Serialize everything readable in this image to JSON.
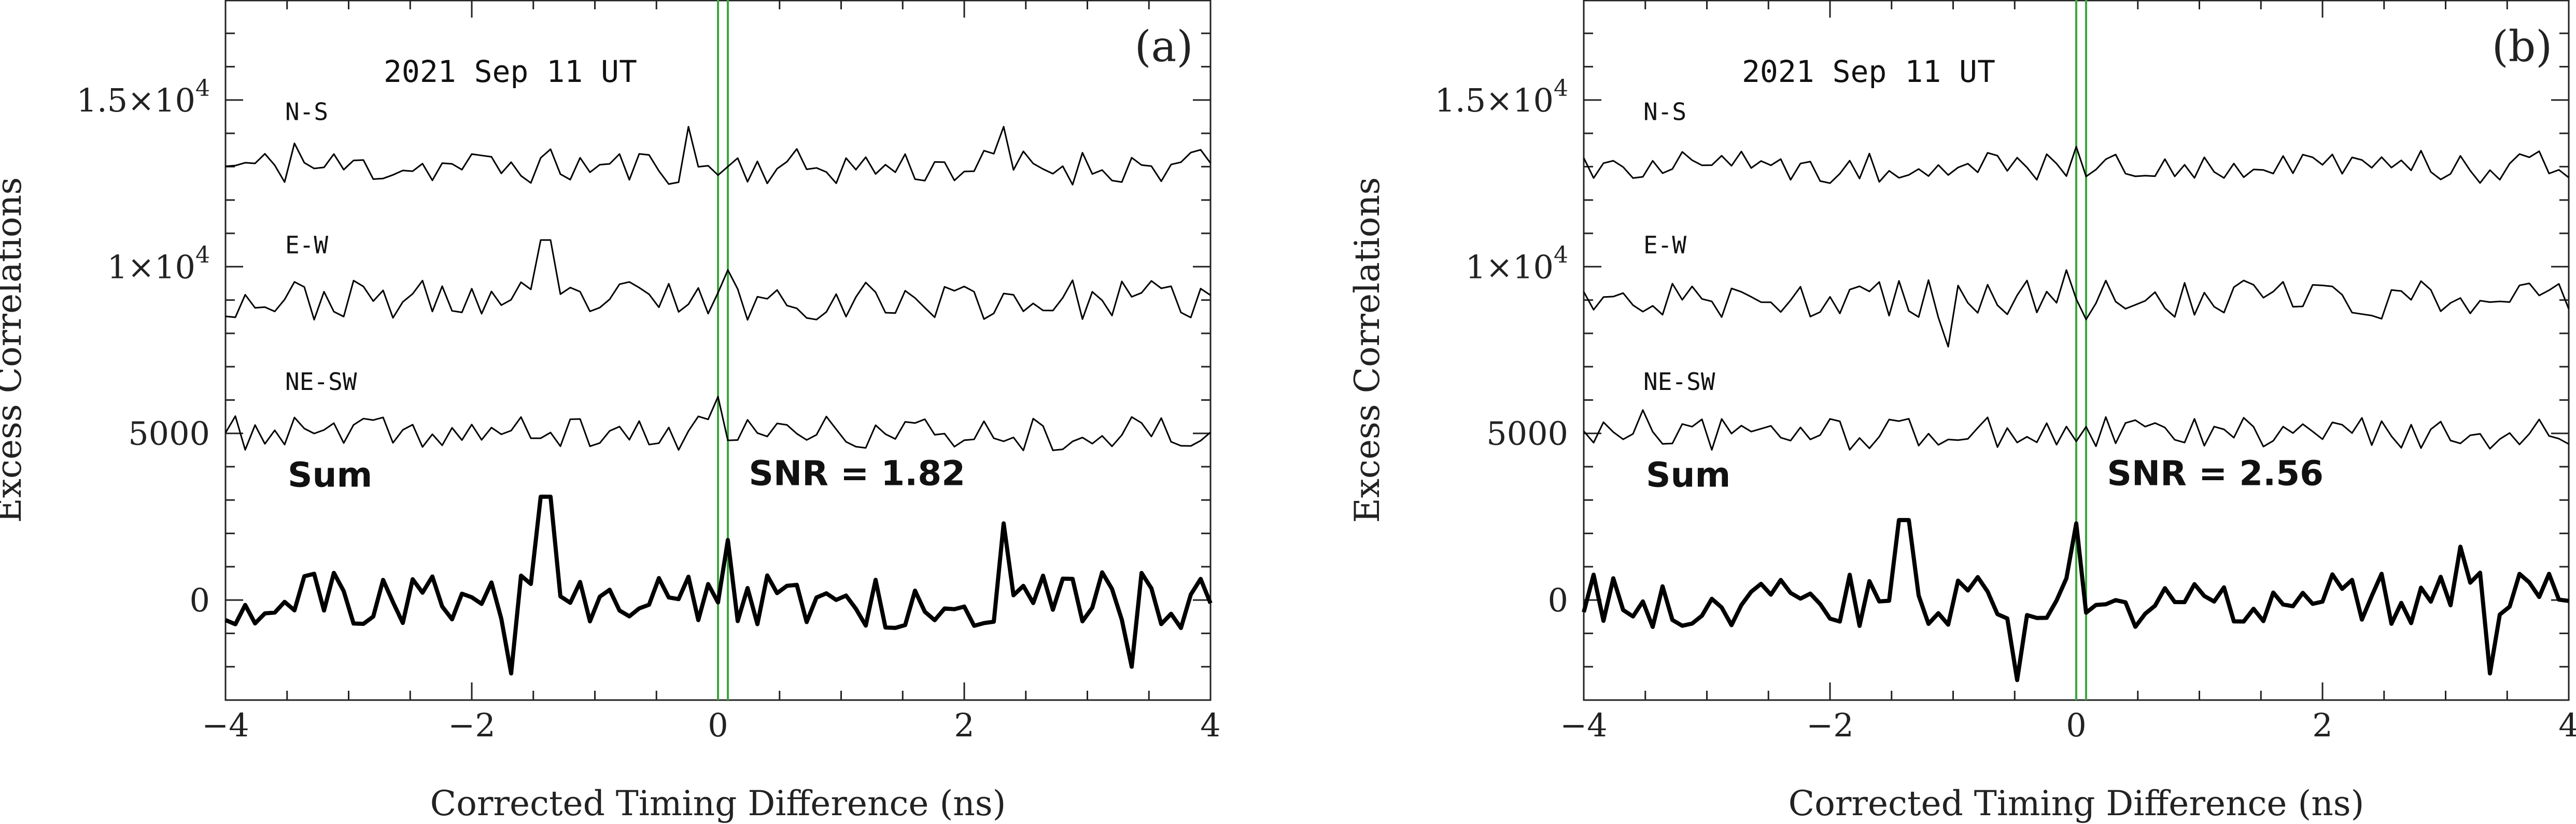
{
  "figure": {
    "xlabel": "Corrected Timing Difference (ns)",
    "ylabel": "Excess Correlations",
    "date": "2021 Sep 11 UT",
    "sum_label": "Sum"
  },
  "colors": {
    "marker": "#3aa83a",
    "line": "#000000",
    "frame": "#222222"
  },
  "chart_data": [
    {
      "type": "line",
      "panel_label": "(a)",
      "title": "2021 Sep 11 UT",
      "xlabel": "Corrected Timing Difference (ns)",
      "ylabel": "Excess Correlations",
      "xlim": [
        -4,
        4
      ],
      "ylim": [
        -3000,
        18000
      ],
      "x_ticks": [
        -4,
        -2,
        0,
        2,
        4
      ],
      "x_tick_labels": [
        "−4",
        "−2",
        "0",
        "2",
        "4"
      ],
      "y_ticks": [
        0,
        5000,
        10000,
        15000
      ],
      "y_tick_labels": [
        {
          "main": "0",
          "exp": ""
        },
        {
          "main": "5000",
          "exp": ""
        },
        {
          "main": "1×10",
          "exp": "4"
        },
        {
          "main": "1.5×10",
          "exp": "4"
        }
      ],
      "snr_text": "SNR = 1.82",
      "marker_lines_x": [
        0.0,
        0.08
      ],
      "series": [
        {
          "name": "N-S",
          "offset": 13000,
          "amplitude": 550,
          "seed": 11,
          "peaks": [
            [
              -0.25,
              1200
            ],
            [
              2.35,
              1200
            ],
            [
              -3.45,
              700
            ]
          ]
        },
        {
          "name": "E-W",
          "offset": 9000,
          "amplitude": 600,
          "seed": 23,
          "peaks": [
            [
              -1.4,
              1800
            ],
            [
              0.05,
              900
            ]
          ]
        },
        {
          "name": "NE-SW",
          "offset": 5000,
          "amplitude": 520,
          "seed": 37,
          "peaks": [
            [
              0.0,
              1100
            ]
          ]
        },
        {
          "name": "Sum",
          "offset": 0,
          "amplitude": 850,
          "seed": 51,
          "bold": true,
          "peaks": [
            [
              -1.4,
              3100
            ],
            [
              -1.7,
              -2200
            ],
            [
              3.35,
              -2000
            ],
            [
              0.05,
              1800
            ],
            [
              2.3,
              2300
            ]
          ]
        }
      ]
    },
    {
      "type": "line",
      "panel_label": "(b)",
      "title": "2021 Sep 11 UT",
      "xlabel": "Corrected Timing Difference (ns)",
      "ylabel": "Excess Correlations",
      "xlim": [
        -4,
        4
      ],
      "ylim": [
        -3000,
        18000
      ],
      "x_ticks": [
        -4,
        -2,
        0,
        2,
        4
      ],
      "x_tick_labels": [
        "−4",
        "−2",
        "0",
        "2",
        "4"
      ],
      "y_ticks": [
        0,
        5000,
        10000,
        15000
      ],
      "y_tick_labels": [
        {
          "main": "0",
          "exp": ""
        },
        {
          "main": "5000",
          "exp": ""
        },
        {
          "main": "1×10",
          "exp": "4"
        },
        {
          "main": "1.5×10",
          "exp": "4"
        }
      ],
      "snr_text": "SNR = 2.56",
      "marker_lines_x": [
        0.0,
        0.08
      ],
      "series": [
        {
          "name": "N-S",
          "offset": 13000,
          "amplitude": 500,
          "seed": 71,
          "peaks": [
            [
              0.0,
              600
            ]
          ]
        },
        {
          "name": "E-W",
          "offset": 9000,
          "amplitude": 600,
          "seed": 83,
          "peaks": [
            [
              -0.05,
              900
            ],
            [
              -1.05,
              -1400
            ]
          ]
        },
        {
          "name": "NE-SW",
          "offset": 5000,
          "amplitude": 500,
          "seed": 97,
          "peaks": [
            [
              -3.5,
              700
            ]
          ]
        },
        {
          "name": "Sum",
          "offset": 0,
          "amplitude": 850,
          "seed": 103,
          "bold": true,
          "peaks": [
            [
              -1.4,
              2400
            ],
            [
              0.0,
              2300
            ],
            [
              -0.5,
              -2400
            ],
            [
              3.35,
              -2200
            ],
            [
              3.1,
              1600
            ]
          ]
        }
      ]
    }
  ]
}
